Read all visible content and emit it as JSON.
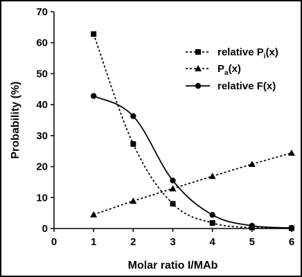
{
  "chart_data": {
    "type": "line",
    "xlabel": "Molar ratio I/MAb",
    "ylabel": "Probability (%)",
    "xlim": [
      0,
      6
    ],
    "ylim": [
      0,
      70
    ],
    "xticks": [
      0,
      1,
      2,
      3,
      4,
      5,
      6
    ],
    "yticks": [
      0,
      10,
      20,
      30,
      40,
      50,
      60,
      70
    ],
    "grid": false,
    "legend_position": "top-right",
    "series": [
      {
        "name": "relative Pi(x)",
        "legend_main": "relative P",
        "legend_sub": "i",
        "legend_tail": "(x)",
        "marker": "square",
        "line_style": "dashed",
        "x": [
          1,
          2,
          3,
          4,
          5,
          6
        ],
        "y": [
          62.8,
          27.3,
          8.0,
          1.8,
          0.3,
          0.1
        ]
      },
      {
        "name": "Pa(x)",
        "legend_main": "P",
        "legend_sub": "a",
        "legend_tail": "(x)",
        "marker": "triangle",
        "line_style": "dashed",
        "x": [
          1,
          2,
          3,
          4,
          5,
          6
        ],
        "y": [
          4.5,
          8.9,
          12.9,
          16.9,
          20.8,
          24.4
        ]
      },
      {
        "name": "relative F(x)",
        "legend_main": "relative F(x)",
        "legend_sub": "",
        "legend_tail": "",
        "marker": "circle",
        "line_style": "solid",
        "x": [
          1,
          2,
          3,
          4,
          5,
          6
        ],
        "y": [
          42.8,
          36.3,
          15.5,
          4.4,
          0.9,
          0.2
        ]
      }
    ]
  }
}
